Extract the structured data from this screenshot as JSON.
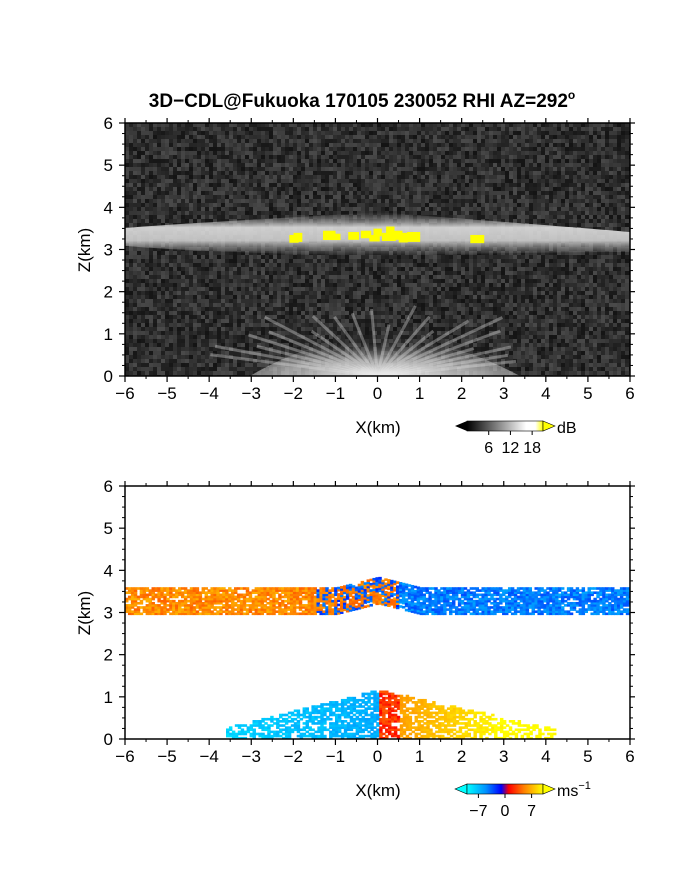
{
  "chart_data": [
    {
      "type": "heatmap",
      "title": "3D−CDL@Fukuoka 170105 230052 RHI AZ=292",
      "title_degree_symbol": "o",
      "xlabel": "X(km)",
      "ylabel": "Z(km)",
      "xlim": [
        -6,
        6
      ],
      "ylim": [
        0,
        6
      ],
      "x_ticks": [
        "−6",
        "−5",
        "−4",
        "−3",
        "−2",
        "−1",
        "0",
        "1",
        "2",
        "3",
        "4",
        "5",
        "6"
      ],
      "y_ticks": [
        "0",
        "1",
        "2",
        "3",
        "4",
        "5",
        "6"
      ],
      "colorbar": {
        "unit": "dB",
        "ticks": [
          "6",
          "12",
          "18"
        ],
        "tick_values": [
          6,
          12,
          18
        ],
        "range": [
          0,
          21
        ],
        "colormap": [
          "#000000",
          "#ffffff",
          "#ffff00"
        ]
      },
      "features": [
        {
          "label": "cloud layer",
          "x_range": [
            -6,
            6
          ],
          "z_center": 3.3,
          "thickness_km": 0.45,
          "peak_dB": 18
        },
        {
          "label": "near-ground fan",
          "x_range": [
            -3,
            3
          ],
          "z_top": 1.2,
          "peak_dB": 14
        }
      ]
    },
    {
      "type": "heatmap",
      "xlabel": "X(km)",
      "ylabel": "Z(km)",
      "xlim": [
        -6,
        6
      ],
      "ylim": [
        0,
        6
      ],
      "x_ticks": [
        "−6",
        "−5",
        "−4",
        "−3",
        "−2",
        "−1",
        "0",
        "1",
        "2",
        "3",
        "4",
        "5",
        "6"
      ],
      "y_ticks": [
        "0",
        "1",
        "2",
        "3",
        "4",
        "5",
        "6"
      ],
      "colorbar": {
        "unit": "ms",
        "unit_superscript": "−1",
        "ticks": [
          "−7",
          "0",
          "7"
        ],
        "tick_values": [
          -7,
          0,
          7
        ],
        "range": [
          -10,
          10
        ],
        "colormap": [
          "#00ffff",
          "#0000ff",
          "#ff0000",
          "#ffff00"
        ]
      },
      "features": [
        {
          "label": "cloud layer positive",
          "x_range": [
            -6,
            0
          ],
          "z_center": 3.3,
          "value_ms": 5
        },
        {
          "label": "cloud layer negative",
          "x_range": [
            -2,
            6
          ],
          "z_center": 3.3,
          "value_ms": -5
        },
        {
          "label": "low-level negative",
          "x_range": [
            -3.5,
            0
          ],
          "z_top": 1.1,
          "value_ms": -8
        },
        {
          "label": "low-level positive",
          "x_range": [
            0,
            4
          ],
          "z_top": 1.1,
          "value_ms": 7
        }
      ]
    }
  ]
}
